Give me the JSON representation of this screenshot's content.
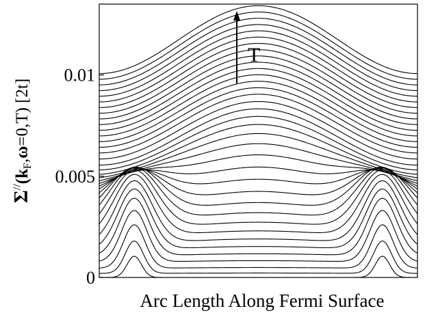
{
  "chart_data": {
    "type": "line",
    "title": "",
    "xlabel": "Arc Length Along Fermi Surface",
    "ylabel": {
      "sigma": "Σ",
      "prime": "//",
      "paren_open": "(",
      "k": "k",
      "k_sub": "F",
      "comma1": ",",
      "omega": "ω",
      "rest": "=0,T",
      "paren_close": ")",
      "unit": " [2t]"
    },
    "ylim": [
      0,
      0.0135
    ],
    "yticks": [
      {
        "value": 0,
        "label": "0"
      },
      {
        "value": 0.005,
        "label": "0.005"
      },
      {
        "value": 0.01,
        "label": "0.01"
      }
    ],
    "xlim": [
      0,
      1
    ],
    "grid": false,
    "legend": "none",
    "annotation": {
      "text": "T",
      "arrow": "up",
      "meaning": "increasing temperature"
    },
    "line_color": "#000000",
    "curve_model": "y(x) = base + dip_amplitude*cos^2(pi*(x-0.5)) + peak_height*(exp(-((x-0.11)/peak_width)^2) + exp(-((x-0.89)/peak_width)^2))",
    "series": [
      {
        "base": 0.0,
        "dip_amplitude": 0.0,
        "peak_height": 0.00105,
        "peak_width": 0.032
      },
      {
        "base": 0.0002,
        "dip_amplitude": 2e-05,
        "peak_height": 0.0016,
        "peak_width": 0.04
      },
      {
        "base": 0.00045,
        "dip_amplitude": 4e-05,
        "peak_height": 0.00215,
        "peak_width": 0.048
      },
      {
        "base": 0.00075,
        "dip_amplitude": 8e-05,
        "peak_height": 0.00255,
        "peak_width": 0.056
      },
      {
        "base": 0.00105,
        "dip_amplitude": 0.00012,
        "peak_height": 0.00285,
        "peak_width": 0.064
      },
      {
        "base": 0.00135,
        "dip_amplitude": 0.00018,
        "peak_height": 0.003,
        "peak_width": 0.072
      },
      {
        "base": 0.00165,
        "dip_amplitude": 0.00025,
        "peak_height": 0.0031,
        "peak_width": 0.08
      },
      {
        "base": 0.00195,
        "dip_amplitude": 0.00035,
        "peak_height": 0.0031,
        "peak_width": 0.09
      },
      {
        "base": 0.00225,
        "dip_amplitude": 0.00048,
        "peak_height": 0.003,
        "peak_width": 0.1
      },
      {
        "base": 0.00255,
        "dip_amplitude": 0.00065,
        "peak_height": 0.0028,
        "peak_width": 0.11
      },
      {
        "base": 0.00285,
        "dip_amplitude": 0.00085,
        "peak_height": 0.0025,
        "peak_width": 0.12
      },
      {
        "base": 0.00315,
        "dip_amplitude": 0.0011,
        "peak_height": 0.0021,
        "peak_width": 0.13
      },
      {
        "base": 0.00345,
        "dip_amplitude": 0.0014,
        "peak_height": 0.0017,
        "peak_width": 0.14
      },
      {
        "base": 0.00375,
        "dip_amplitude": 0.0017,
        "peak_height": 0.0013,
        "peak_width": 0.15
      },
      {
        "base": 0.00405,
        "dip_amplitude": 0.002,
        "peak_height": 0.00095,
        "peak_width": 0.16
      },
      {
        "base": 0.00435,
        "dip_amplitude": 0.00225,
        "peak_height": 0.00065,
        "peak_width": 0.17
      },
      {
        "base": 0.00465,
        "dip_amplitude": 0.00245,
        "peak_height": 0.0004,
        "peak_width": 0.18
      },
      {
        "base": 0.00495,
        "dip_amplitude": 0.0026,
        "peak_height": 0.0002,
        "peak_width": 0.19
      },
      {
        "base": 0.00525,
        "dip_amplitude": 0.0027,
        "peak_height": 8e-05,
        "peak_width": 0.2
      },
      {
        "base": 0.00555,
        "dip_amplitude": 0.00278,
        "peak_height": 0.0,
        "peak_width": 0.2
      },
      {
        "base": 0.00585,
        "dip_amplitude": 0.00284,
        "peak_height": 0.0,
        "peak_width": 0.2
      },
      {
        "base": 0.00615,
        "dip_amplitude": 0.0029,
        "peak_height": 0.0,
        "peak_width": 0.2
      },
      {
        "base": 0.00643,
        "dip_amplitude": 0.00294,
        "peak_height": 0.0,
        "peak_width": 0.2
      },
      {
        "base": 0.00671,
        "dip_amplitude": 0.00298,
        "peak_height": 0.0,
        "peak_width": 0.2
      },
      {
        "base": 0.00699,
        "dip_amplitude": 0.00302,
        "peak_height": 0.0,
        "peak_width": 0.2
      },
      {
        "base": 0.00727,
        "dip_amplitude": 0.00305,
        "peak_height": 0.0,
        "peak_width": 0.2
      },
      {
        "base": 0.00755,
        "dip_amplitude": 0.00308,
        "peak_height": 0.0,
        "peak_width": 0.2
      },
      {
        "base": 0.00783,
        "dip_amplitude": 0.00311,
        "peak_height": 0.0,
        "peak_width": 0.2
      },
      {
        "base": 0.00811,
        "dip_amplitude": 0.00314,
        "peak_height": 0.0,
        "peak_width": 0.2
      },
      {
        "base": 0.00839,
        "dip_amplitude": 0.00317,
        "peak_height": 0.0,
        "peak_width": 0.2
      },
      {
        "base": 0.00867,
        "dip_amplitude": 0.0032,
        "peak_height": 0.0,
        "peak_width": 0.2
      },
      {
        "base": 0.00895,
        "dip_amplitude": 0.00323,
        "peak_height": 0.0,
        "peak_width": 0.2
      },
      {
        "base": 0.00923,
        "dip_amplitude": 0.00326,
        "peak_height": 0.0,
        "peak_width": 0.2
      },
      {
        "base": 0.00951,
        "dip_amplitude": 0.00329,
        "peak_height": 0.0,
        "peak_width": 0.2
      },
      {
        "base": 0.00979,
        "dip_amplitude": 0.00332,
        "peak_height": 0.0,
        "peak_width": 0.2
      },
      {
        "base": 0.01007,
        "dip_amplitude": 0.00335,
        "peak_height": 0.0,
        "peak_width": 0.2
      }
    ]
  }
}
